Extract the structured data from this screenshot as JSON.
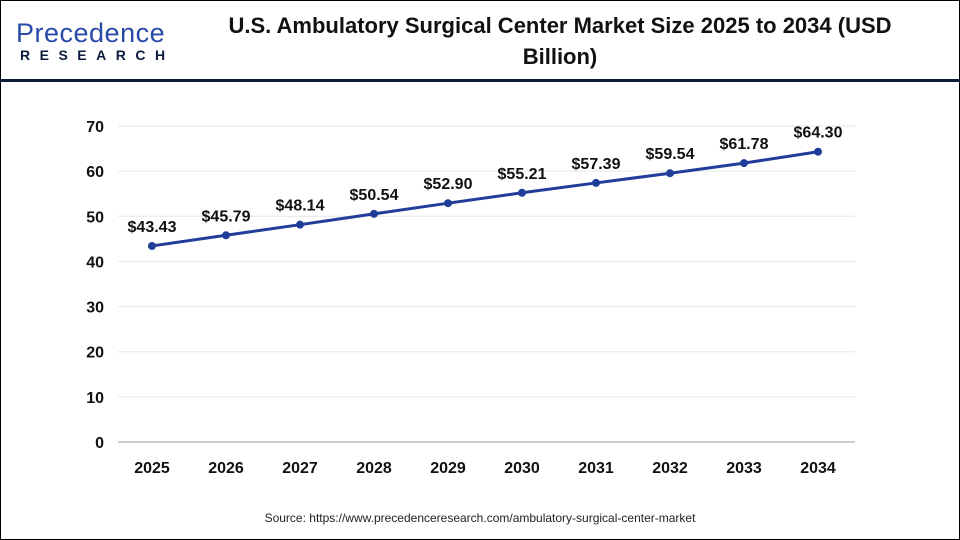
{
  "logo": {
    "line1": "Precedence",
    "line2": "RESEARCH"
  },
  "title": "U.S. Ambulatory Surgical Center Market Size 2025 to 2034 (USD Billion)",
  "source": "Source: https://www.precedenceresearch.com/ambulatory-surgical-center-market",
  "chart_data": {
    "type": "line",
    "title": "U.S. Ambulatory Surgical Center Market Size 2025 to 2034 (USD Billion)",
    "categories": [
      "2025",
      "2026",
      "2027",
      "2028",
      "2029",
      "2030",
      "2031",
      "2032",
      "2033",
      "2034"
    ],
    "values": [
      43.43,
      45.79,
      48.14,
      50.54,
      52.9,
      55.21,
      57.39,
      59.54,
      61.78,
      64.3
    ],
    "data_labels": [
      "$43.43",
      "$45.79",
      "$48.14",
      "$50.54",
      "$52.90",
      "$55.21",
      "$57.39",
      "$59.54",
      "$61.78",
      "$64.30"
    ],
    "yticks": [
      0,
      10,
      20,
      30,
      40,
      50,
      60,
      70
    ],
    "ylim": [
      0,
      70
    ],
    "grid": true,
    "line_color": "#1f3d99"
  }
}
